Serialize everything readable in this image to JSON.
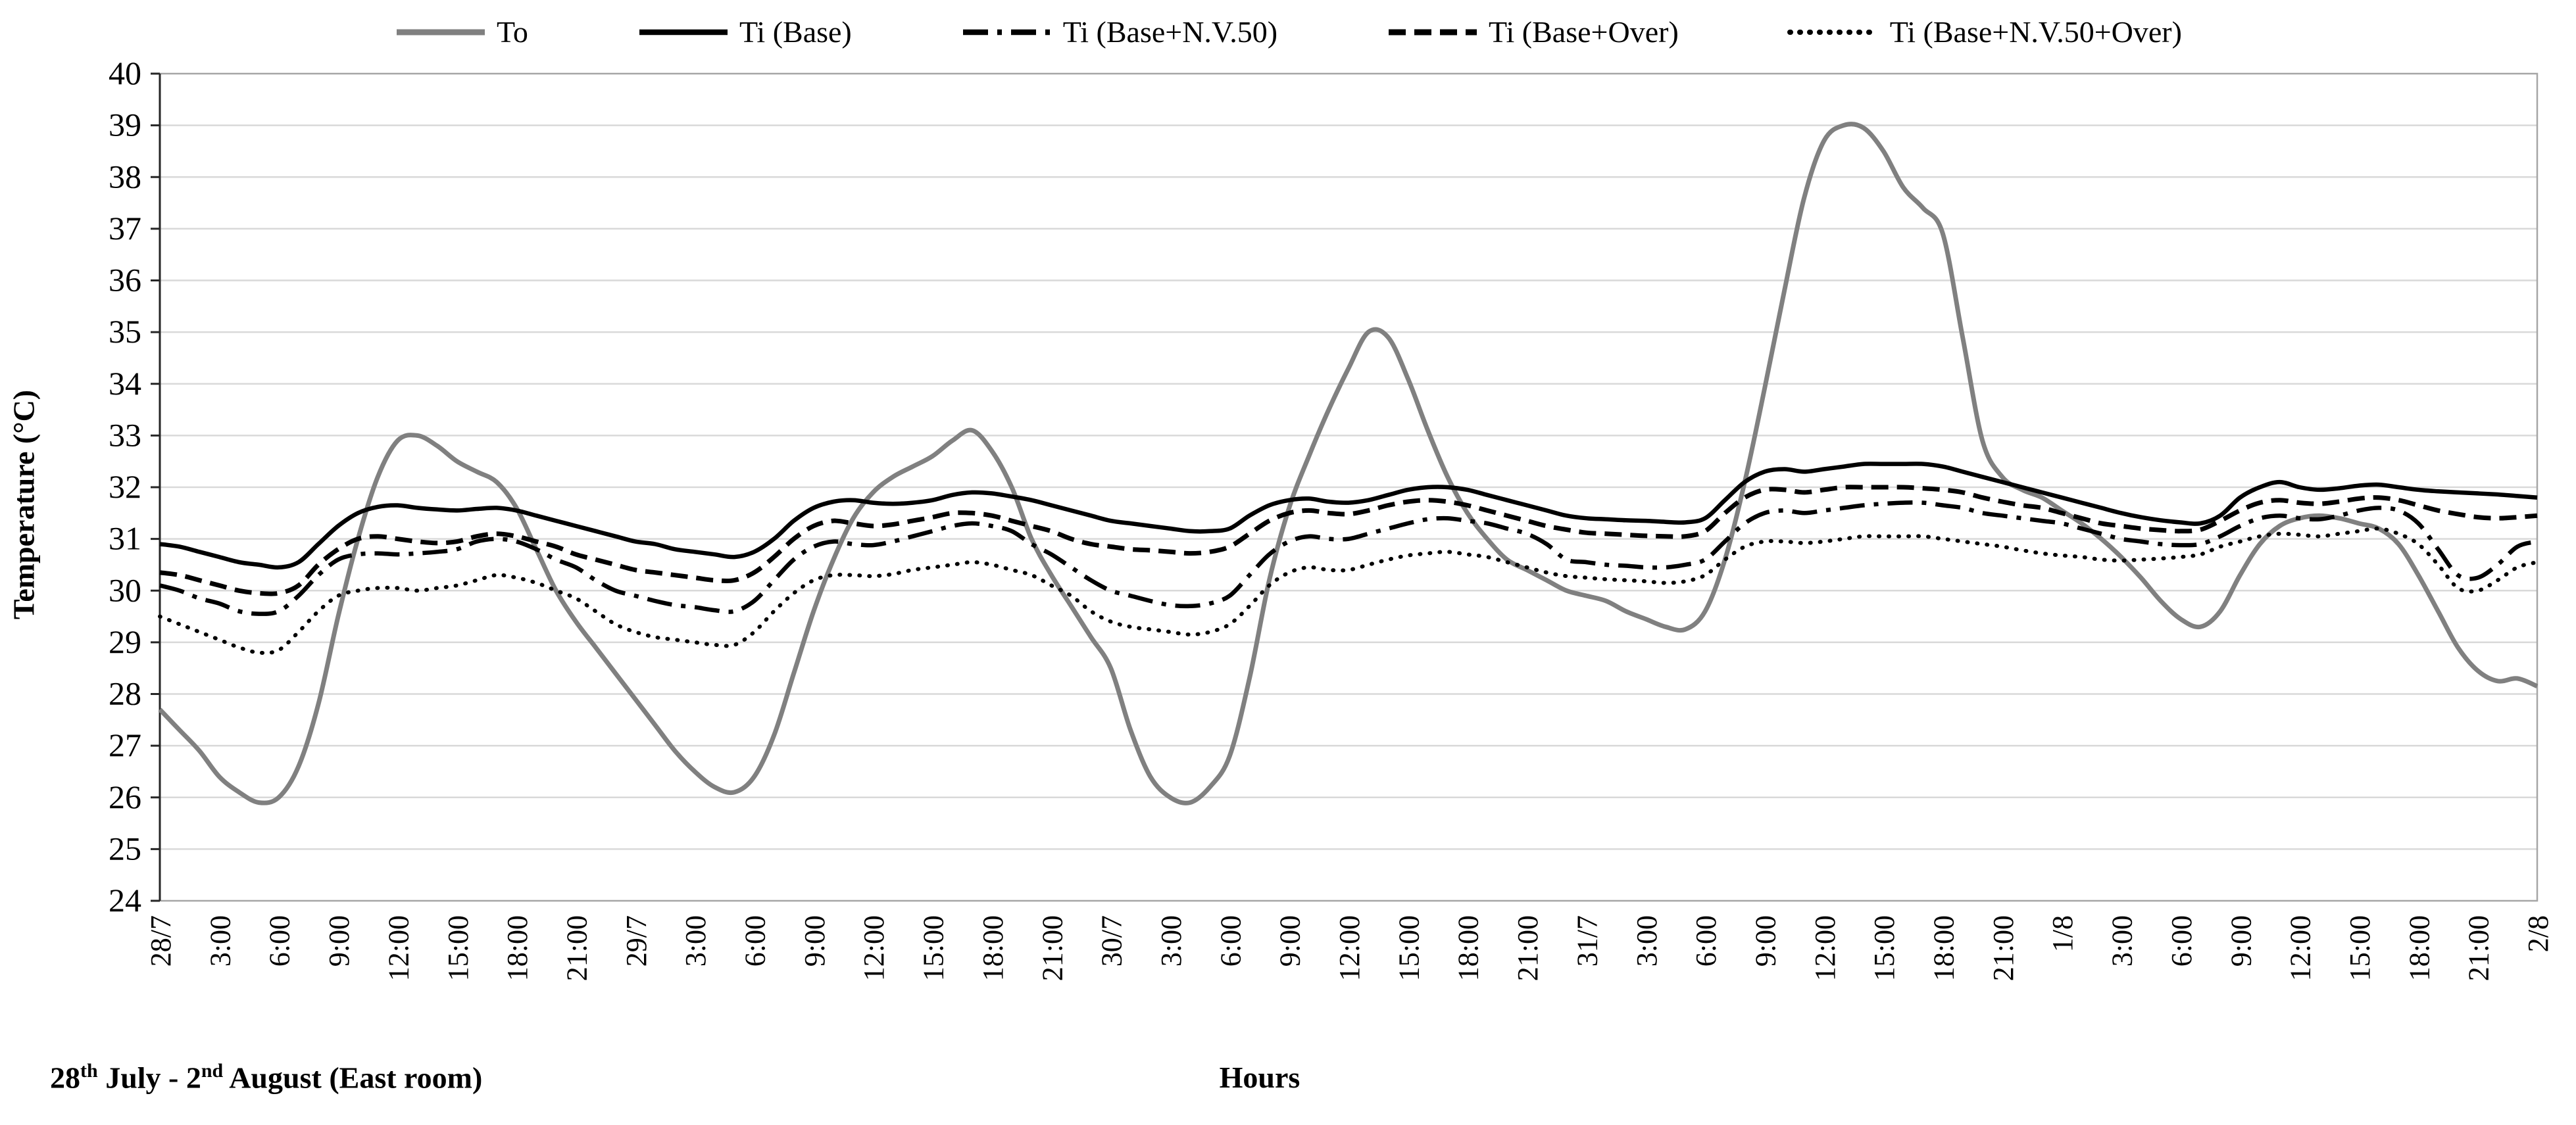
{
  "caption": {
    "parts": [
      {
        "text": "28"
      },
      {
        "text": "th"
      },
      {
        "text": " July - 2"
      },
      {
        "text": "nd"
      },
      {
        "text": " August (East room)"
      }
    ]
  },
  "chart_data": {
    "type": "line",
    "title": "",
    "xlabel": "Hours",
    "ylabel": "Temperature (°C)",
    "ylim": [
      24,
      40
    ],
    "yticks": [
      24,
      25,
      26,
      27,
      28,
      29,
      30,
      31,
      32,
      33,
      34,
      35,
      36,
      37,
      38,
      39,
      40
    ],
    "x_hours_range": [
      0,
      120
    ],
    "x_hours_step": 1,
    "categories": [
      "28/7",
      "3:00",
      "6:00",
      "9:00",
      "12:00",
      "15:00",
      "18:00",
      "21:00",
      "29/7",
      "3:00",
      "6:00",
      "9:00",
      "12:00",
      "15:00",
      "18:00",
      "21:00",
      "30/7",
      "3:00",
      "6:00",
      "9:00",
      "12:00",
      "15:00",
      "18:00",
      "21:00",
      "31/7",
      "3:00",
      "6:00",
      "9:00",
      "12:00",
      "15:00",
      "18:00",
      "21:00",
      "1/8",
      "3:00",
      "6:00",
      "9:00",
      "12:00",
      "15:00",
      "18:00",
      "21:00",
      "2/8"
    ],
    "grid": "horizontal",
    "legend_position": "top",
    "colors": {
      "outdoor": "#808080",
      "indoor": "#000000",
      "gridline": "#d9d9d9",
      "frame": "#a6a6a6",
      "axis": "#262626"
    },
    "series": [
      {
        "name": "To",
        "style": "solid",
        "color": "#808080",
        "width": 7,
        "values": [
          27.7,
          27.3,
          26.9,
          26.4,
          26.1,
          25.9,
          26.0,
          26.6,
          27.8,
          29.5,
          31.0,
          32.2,
          32.9,
          33.0,
          32.8,
          32.5,
          32.3,
          32.1,
          31.6,
          30.8,
          30.0,
          29.4,
          28.9,
          28.4,
          27.9,
          27.4,
          26.9,
          26.5,
          26.2,
          26.1,
          26.4,
          27.2,
          28.4,
          29.6,
          30.6,
          31.4,
          31.9,
          32.2,
          32.4,
          32.6,
          32.9,
          33.1,
          32.7,
          32.0,
          31.0,
          30.3,
          29.7,
          29.1,
          28.5,
          27.3,
          26.4,
          26.0,
          25.9,
          26.2,
          26.8,
          28.3,
          30.2,
          31.6,
          32.6,
          33.5,
          34.3,
          35.0,
          34.9,
          34.1,
          33.1,
          32.2,
          31.5,
          31.0,
          30.6,
          30.4,
          30.2,
          30.0,
          29.9,
          29.8,
          29.6,
          29.45,
          29.3,
          29.25,
          29.6,
          30.6,
          32.1,
          33.9,
          35.8,
          37.6,
          38.7,
          39.0,
          38.95,
          38.5,
          37.8,
          37.4,
          36.9,
          34.9,
          32.9,
          32.2,
          31.95,
          31.8,
          31.55,
          31.3,
          31.0,
          30.65,
          30.25,
          29.8,
          29.45,
          29.3,
          29.6,
          30.3,
          30.9,
          31.25,
          31.4,
          31.45,
          31.4,
          31.3,
          31.2,
          30.9,
          30.3,
          29.6,
          28.9,
          28.45,
          28.25,
          28.3,
          28.15
        ]
      },
      {
        "name": "Ti (Base)",
        "style": "solid",
        "color": "#000000",
        "width": 6.5,
        "values": [
          30.9,
          30.85,
          30.75,
          30.65,
          30.55,
          30.5,
          30.45,
          30.55,
          30.9,
          31.25,
          31.5,
          31.62,
          31.65,
          31.6,
          31.57,
          31.55,
          31.58,
          31.6,
          31.55,
          31.45,
          31.35,
          31.25,
          31.15,
          31.05,
          30.95,
          30.9,
          30.8,
          30.75,
          30.7,
          30.65,
          30.75,
          31.0,
          31.35,
          31.6,
          31.72,
          31.75,
          31.7,
          31.68,
          31.7,
          31.75,
          31.85,
          31.9,
          31.88,
          31.82,
          31.75,
          31.65,
          31.55,
          31.45,
          31.35,
          31.3,
          31.25,
          31.2,
          31.15,
          31.15,
          31.2,
          31.45,
          31.65,
          31.75,
          31.78,
          31.72,
          31.7,
          31.75,
          31.85,
          31.95,
          32.0,
          32.0,
          31.95,
          31.85,
          31.75,
          31.65,
          31.55,
          31.45,
          31.4,
          31.38,
          31.36,
          31.35,
          31.33,
          31.32,
          31.4,
          31.75,
          32.1,
          32.3,
          32.35,
          32.3,
          32.35,
          32.4,
          32.45,
          32.45,
          32.45,
          32.45,
          32.4,
          32.3,
          32.2,
          32.1,
          32.0,
          31.9,
          31.8,
          31.7,
          31.6,
          31.5,
          31.42,
          31.36,
          31.32,
          31.3,
          31.45,
          31.8,
          32.0,
          32.1,
          32.0,
          31.95,
          31.98,
          32.03,
          32.05,
          32.0,
          31.95,
          31.92,
          31.9,
          31.88,
          31.86,
          31.83,
          31.8
        ]
      },
      {
        "name": "Ti (Base+N.V.50)",
        "style": "dashdot",
        "color": "#000000",
        "width": 6.5,
        "values": [
          30.1,
          30.0,
          29.85,
          29.75,
          29.6,
          29.55,
          29.6,
          29.9,
          30.3,
          30.6,
          30.7,
          30.72,
          30.7,
          30.72,
          30.75,
          30.8,
          30.95,
          31.0,
          30.95,
          30.8,
          30.6,
          30.45,
          30.2,
          30.0,
          29.9,
          29.8,
          29.72,
          29.68,
          29.62,
          29.6,
          29.8,
          30.2,
          30.6,
          30.85,
          30.95,
          30.9,
          30.88,
          30.95,
          31.05,
          31.15,
          31.25,
          31.3,
          31.25,
          31.15,
          30.9,
          30.7,
          30.45,
          30.2,
          30.0,
          29.9,
          29.8,
          29.72,
          29.7,
          29.75,
          29.9,
          30.3,
          30.7,
          30.95,
          31.05,
          31.0,
          31.0,
          31.1,
          31.2,
          31.3,
          31.38,
          31.4,
          31.35,
          31.3,
          31.2,
          31.1,
          30.9,
          30.6,
          30.55,
          30.5,
          30.48,
          30.45,
          30.45,
          30.5,
          30.6,
          30.95,
          31.3,
          31.5,
          31.55,
          31.5,
          31.55,
          31.6,
          31.65,
          31.68,
          31.7,
          31.7,
          31.65,
          31.6,
          31.5,
          31.45,
          31.4,
          31.35,
          31.3,
          31.2,
          31.1,
          31.0,
          30.95,
          30.9,
          30.88,
          30.9,
          31.05,
          31.25,
          31.4,
          31.45,
          31.4,
          31.38,
          31.45,
          31.55,
          31.6,
          31.55,
          31.3,
          30.8,
          30.3,
          30.25,
          30.5,
          30.85,
          30.95
        ]
      },
      {
        "name": "Ti (Base+Over)",
        "style": "dash",
        "color": "#000000",
        "width": 7,
        "values": [
          30.35,
          30.3,
          30.2,
          30.1,
          30.0,
          29.95,
          29.95,
          30.1,
          30.5,
          30.8,
          31.0,
          31.05,
          31.0,
          30.95,
          30.92,
          30.95,
          31.05,
          31.1,
          31.05,
          30.95,
          30.85,
          30.7,
          30.6,
          30.5,
          30.4,
          30.35,
          30.3,
          30.25,
          30.2,
          30.2,
          30.35,
          30.65,
          31.0,
          31.25,
          31.35,
          31.3,
          31.25,
          31.28,
          31.35,
          31.42,
          31.5,
          31.5,
          31.45,
          31.35,
          31.25,
          31.15,
          31.0,
          30.9,
          30.85,
          30.8,
          30.78,
          30.75,
          30.72,
          30.75,
          30.85,
          31.1,
          31.35,
          31.5,
          31.55,
          31.5,
          31.48,
          31.55,
          31.65,
          31.72,
          31.75,
          31.72,
          31.65,
          31.55,
          31.45,
          31.35,
          31.25,
          31.18,
          31.12,
          31.1,
          31.08,
          31.06,
          31.05,
          31.05,
          31.15,
          31.5,
          31.8,
          31.95,
          31.95,
          31.9,
          31.95,
          32.0,
          32.0,
          32.0,
          32.0,
          31.98,
          31.95,
          31.9,
          31.8,
          31.72,
          31.65,
          31.6,
          31.5,
          31.4,
          31.3,
          31.25,
          31.2,
          31.17,
          31.15,
          31.18,
          31.35,
          31.55,
          31.7,
          31.75,
          31.7,
          31.68,
          31.72,
          31.78,
          31.8,
          31.75,
          31.65,
          31.55,
          31.48,
          31.42,
          31.4,
          31.42,
          31.45
        ]
      },
      {
        "name": "Ti (Base+N.V.50+Over)",
        "style": "dot",
        "color": "#000000",
        "width": 6,
        "values": [
          29.5,
          29.35,
          29.2,
          29.05,
          28.9,
          28.8,
          28.85,
          29.2,
          29.6,
          29.9,
          30.0,
          30.05,
          30.05,
          30.0,
          30.05,
          30.1,
          30.2,
          30.3,
          30.25,
          30.15,
          30.0,
          29.85,
          29.6,
          29.35,
          29.2,
          29.1,
          29.05,
          29.0,
          28.95,
          28.95,
          29.2,
          29.6,
          29.95,
          30.2,
          30.3,
          30.3,
          30.28,
          30.32,
          30.4,
          30.45,
          30.5,
          30.55,
          30.5,
          30.4,
          30.3,
          30.1,
          29.9,
          29.6,
          29.4,
          29.3,
          29.25,
          29.2,
          29.15,
          29.2,
          29.35,
          29.7,
          30.1,
          30.35,
          30.45,
          30.4,
          30.4,
          30.5,
          30.6,
          30.68,
          30.72,
          30.75,
          30.7,
          30.65,
          30.55,
          30.45,
          30.35,
          30.28,
          30.25,
          30.22,
          30.2,
          30.18,
          30.15,
          30.18,
          30.3,
          30.6,
          30.85,
          30.95,
          30.95,
          30.92,
          30.95,
          31.0,
          31.05,
          31.05,
          31.05,
          31.05,
          31.0,
          30.95,
          30.9,
          30.85,
          30.78,
          30.72,
          30.68,
          30.65,
          30.6,
          30.58,
          30.6,
          30.62,
          30.65,
          30.7,
          30.85,
          30.95,
          31.05,
          31.1,
          31.08,
          31.05,
          31.1,
          31.15,
          31.2,
          31.1,
          30.9,
          30.5,
          30.05,
          30.0,
          30.2,
          30.45,
          30.55
        ]
      }
    ]
  }
}
